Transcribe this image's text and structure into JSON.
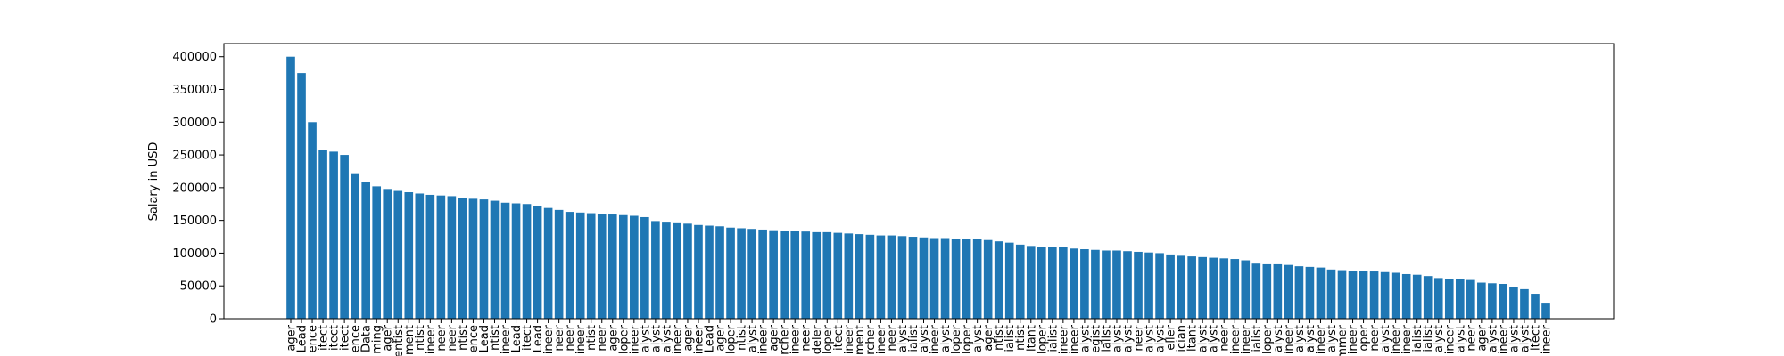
{
  "chart_data": {
    "type": "bar",
    "ylabel": "Salary in USD",
    "color": "#1f77b4",
    "categories": [
      "ager",
      "Lead",
      "ence",
      "itect",
      "itect",
      "itect",
      "ence",
      "Data",
      "ming",
      "ager",
      "entist",
      "ment",
      "ntist",
      "ineer",
      "neer",
      "neer",
      "ntist",
      "ence",
      "Lead",
      "ntist",
      "ineer",
      "Lead",
      "itect",
      "Lead",
      "ineer",
      "neer",
      "neer",
      "ineer",
      "ntist",
      "neer",
      "ager",
      "loper",
      "ineer",
      "alyst",
      "alyst",
      "alyst",
      "ineer",
      "ager",
      "ineer",
      "Lead",
      "ager",
      "loper",
      "ntist",
      "alyst",
      "ineer",
      "ager",
      "rcher",
      "ineer",
      "neer",
      "deler",
      "loper",
      "itect",
      "ineer",
      "ment",
      "rcher",
      "ineer",
      "neer",
      "alyst",
      "ialist",
      "alyst",
      "ineer",
      "alyst",
      "loper",
      "loper",
      "alyst",
      "ager",
      "ntist",
      "ialist",
      "ntist",
      "ltant",
      "loper",
      "ialist",
      "ineer",
      "ineer",
      "alyst",
      "egist",
      "ialist",
      "alyst",
      "alyst",
      "neer",
      "alyst",
      "alyst",
      "eller",
      "ician",
      "ltant",
      "alyst",
      "alyst",
      "neer",
      "ineer",
      "ineer",
      "ialist",
      "loper",
      "alyst",
      "ineer",
      "alyst",
      "alyst",
      "ineer",
      "alyst",
      "mmer",
      "ineer",
      "oper",
      "neer",
      "alyst",
      "ineer",
      "ineer",
      "ialist",
      "ialist",
      "alyst",
      "ineer",
      "alyst",
      "neer",
      "ager",
      "alyst",
      "ineer",
      "alyst",
      "alyst",
      "itect",
      "ineer"
    ],
    "values": [
      400000,
      375000,
      300000,
      258000,
      255000,
      250000,
      222000,
      208000,
      202000,
      198000,
      195000,
      193000,
      191000,
      189000,
      188000,
      187000,
      184000,
      183000,
      182000,
      180000,
      177000,
      176000,
      175000,
      172000,
      169000,
      166000,
      163000,
      162000,
      161000,
      160000,
      159000,
      158000,
      157000,
      155000,
      149000,
      148000,
      147000,
      145000,
      143000,
      142000,
      141000,
      139000,
      138000,
      137000,
      136000,
      135000,
      134000,
      134000,
      133000,
      132000,
      132000,
      131000,
      130000,
      129000,
      128000,
      127000,
      127000,
      126000,
      125000,
      124000,
      123000,
      123000,
      122000,
      122000,
      121000,
      120000,
      118000,
      116000,
      113000,
      111000,
      110000,
      109000,
      109000,
      107000,
      106000,
      105000,
      104000,
      104000,
      103000,
      102000,
      101000,
      100000,
      98000,
      96000,
      95000,
      94000,
      93000,
      92000,
      91000,
      89000,
      84000,
      83000,
      83000,
      82000,
      80000,
      79000,
      78000,
      75000,
      74000,
      73000,
      73000,
      72000,
      71000,
      70000,
      68000,
      67000,
      65000,
      62000,
      60000,
      60000,
      59000,
      55000,
      54000,
      53000,
      48000,
      45000,
      38000,
      23000
    ],
    "ylim": [
      0,
      420000
    ],
    "yticks": [
      0,
      50000,
      100000,
      150000,
      200000,
      250000,
      300000,
      350000,
      400000
    ],
    "grid": false
  }
}
